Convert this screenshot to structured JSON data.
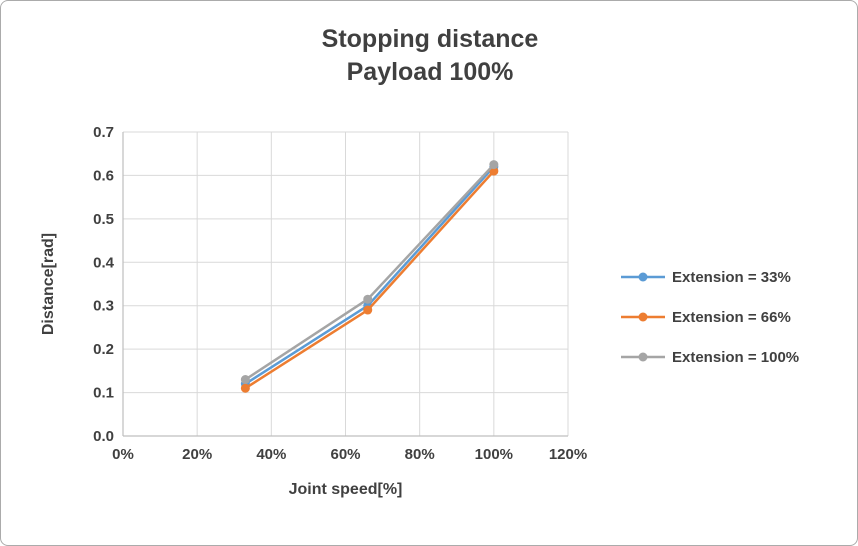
{
  "window": {
    "background": "#FFFFFF",
    "border_color": "#ABABAB"
  },
  "chart_data": {
    "type": "line",
    "title": "Stopping distance",
    "subtitle": "Payload 100%",
    "xlabel": "Joint speed[%]",
    "ylabel": "Distance[rad]",
    "x": [
      33,
      66,
      100
    ],
    "xlim": [
      0,
      120
    ],
    "x_tick_values": [
      0,
      20,
      40,
      60,
      80,
      100,
      120
    ],
    "x_tick_labels": [
      "0%",
      "20%",
      "40%",
      "60%",
      "80%",
      "100%",
      "120%"
    ],
    "ylim": [
      0,
      0.7
    ],
    "y_tick_step": 0.1,
    "y_tick_labels": [
      "0.0",
      "0.1",
      "0.2",
      "0.3",
      "0.4",
      "0.5",
      "0.6",
      "0.7"
    ],
    "grid": true,
    "legend_position": "right",
    "series": [
      {
        "name": "Extension = 33%",
        "color": "#5B9BD5",
        "values": [
          0.12,
          0.3,
          0.62
        ]
      },
      {
        "name": "Extension = 66%",
        "color": "#ED7D31",
        "values": [
          0.11,
          0.29,
          0.61
        ]
      },
      {
        "name": "Extension = 100%",
        "color": "#A5A5A5",
        "values": [
          0.13,
          0.315,
          0.625
        ]
      }
    ],
    "styles": {
      "title_color": "#404040",
      "axis_text_color": "#404040",
      "grid_color": "#D9D9D9",
      "axis_line_color": "#BFBFBF"
    }
  }
}
